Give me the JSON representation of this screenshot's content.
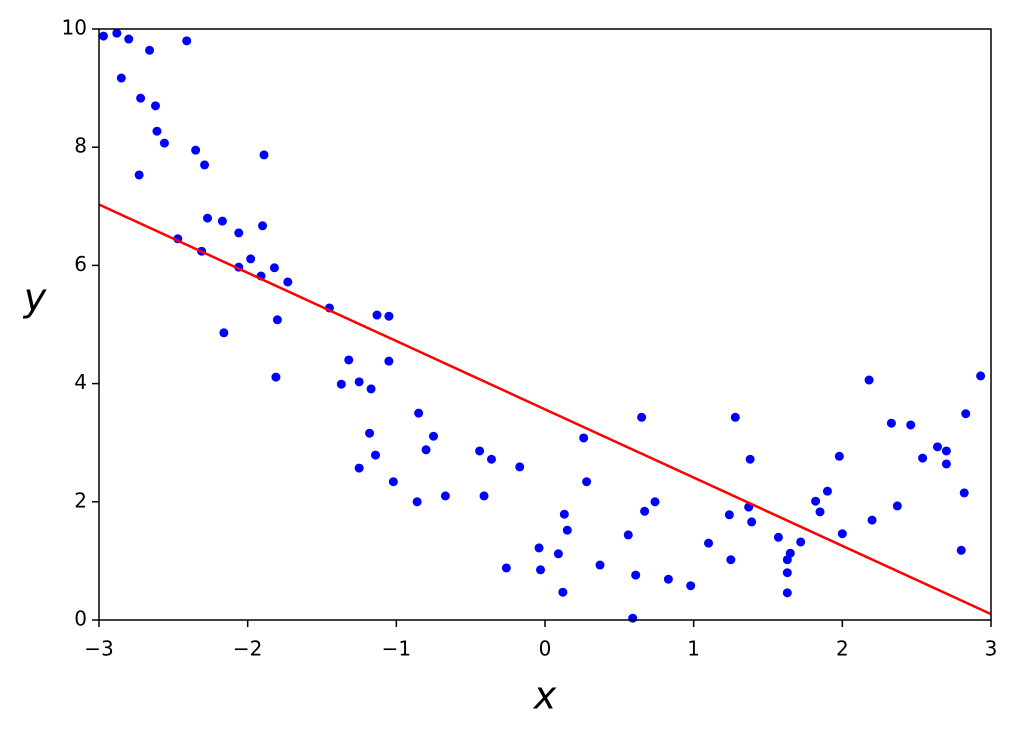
{
  "chart_data": {
    "type": "scatter",
    "xlabel": "x",
    "ylabel": "y",
    "xlim": [
      -3,
      3
    ],
    "ylim": [
      0,
      10
    ],
    "xticks": [
      {
        "value": -3,
        "label": "−3"
      },
      {
        "value": -2,
        "label": "−2"
      },
      {
        "value": -1,
        "label": "−1"
      },
      0,
      1,
      2,
      3
    ],
    "yticks": [
      0,
      2,
      4,
      6,
      8,
      10
    ],
    "grid": false,
    "series": [
      {
        "type": "scatter",
        "color": "#0000ff",
        "x": [
          -2.97,
          -2.88,
          -2.8,
          -2.41,
          -2.66,
          -2.85,
          -2.72,
          -2.62,
          -2.61,
          -2.56,
          -2.35,
          -2.29,
          -1.89,
          -2.73,
          -2.27,
          -2.17,
          -1.9,
          -2.06,
          -2.47,
          -2.31,
          -1.98,
          -2.06,
          -1.82,
          -1.91,
          -1.73,
          -1.45,
          -1.13,
          -1.05,
          -1.8,
          -2.16,
          -1.32,
          -1.05,
          -1.81,
          -1.37,
          -1.25,
          -1.17,
          -0.85,
          -0.75,
          -1.18,
          -0.8,
          -0.44,
          -0.36,
          -1.14,
          -1.25,
          -0.17,
          -1.02,
          -0.67,
          -0.41,
          -0.86,
          0.26,
          0.65,
          1.28,
          1.38,
          0.28,
          0.13,
          0.15,
          0.67,
          0.74,
          -0.04,
          0.09,
          0.56,
          -0.26,
          -0.03,
          0.37,
          0.61,
          0.83,
          0.98,
          0.12,
          0.59,
          1.1,
          1.24,
          1.25,
          1.37,
          1.39,
          1.57,
          1.65,
          1.63,
          1.63,
          1.63,
          1.72,
          1.82,
          1.85,
          1.9,
          1.98,
          2.0,
          2.18,
          2.2,
          2.33,
          2.37,
          2.46,
          2.54,
          2.64,
          2.7,
          2.7,
          2.8,
          2.82,
          2.83,
          2.93
        ],
        "values": [
          9.88,
          9.93,
          9.83,
          9.8,
          9.64,
          9.17,
          8.83,
          8.7,
          8.27,
          8.07,
          7.95,
          7.7,
          7.87,
          7.53,
          6.8,
          6.75,
          6.67,
          6.55,
          6.45,
          6.24,
          6.11,
          5.97,
          5.96,
          5.82,
          5.72,
          5.28,
          5.16,
          5.14,
          5.08,
          4.86,
          4.4,
          4.38,
          4.11,
          3.99,
          4.03,
          3.91,
          3.5,
          3.11,
          3.16,
          2.88,
          2.86,
          2.72,
          2.79,
          2.57,
          2.59,
          2.34,
          2.1,
          2.1,
          2.0,
          3.08,
          3.43,
          3.43,
          2.72,
          2.34,
          1.79,
          1.52,
          1.84,
          2.0,
          1.22,
          1.12,
          1.44,
          0.88,
          0.85,
          0.93,
          0.76,
          0.69,
          0.58,
          0.47,
          0.03,
          1.3,
          1.78,
          1.02,
          1.91,
          1.66,
          1.4,
          1.13,
          1.02,
          0.8,
          0.46,
          1.32,
          2.01,
          1.83,
          2.18,
          2.77,
          1.46,
          4.06,
          1.69,
          3.33,
          1.93,
          3.3,
          2.74,
          2.93,
          2.86,
          2.64,
          1.18,
          2.15,
          3.49,
          4.13
        ]
      },
      {
        "type": "line",
        "color": "#ff0000",
        "x": [
          -3,
          3
        ],
        "values": [
          7.03,
          0.1
        ]
      }
    ]
  }
}
